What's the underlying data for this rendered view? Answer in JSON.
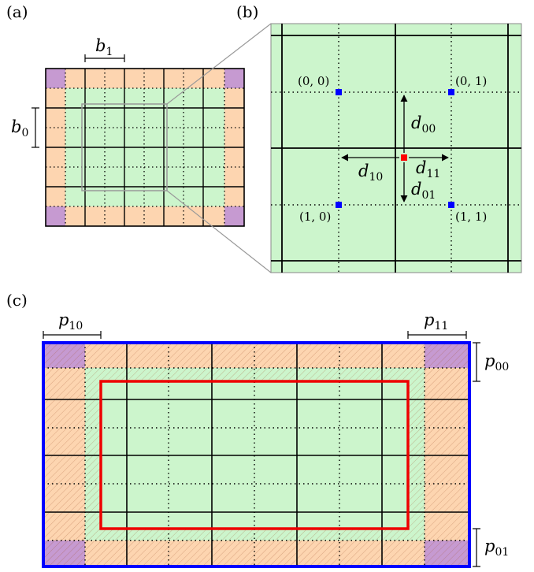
{
  "panels": {
    "a": {
      "label": "(a)"
    },
    "b": {
      "label": "(b)"
    },
    "c": {
      "label": "(c)"
    }
  },
  "panel_a": {
    "b1_var": "b",
    "b1_sub": "1",
    "b0_var": "b",
    "b0_sub": "0"
  },
  "panel_b": {
    "corners": [
      "(0, 0)",
      "(0, 1)",
      "(1, 0)",
      "(1, 1)"
    ],
    "d00_var": "d",
    "d00_sub": "00",
    "d10_var": "d",
    "d10_sub": "10",
    "d11_var": "d",
    "d11_sub": "11",
    "d01_var": "d",
    "d01_sub": "01"
  },
  "panel_c": {
    "p10_var": "p",
    "p10_sub": "10",
    "p11_var": "p",
    "p11_sub": "11",
    "p00_var": "p",
    "p00_sub": "00",
    "p01_var": "p",
    "p01_sub": "01"
  },
  "colors": {
    "green": "#ccf5cc",
    "orange": "#fdd5b0",
    "purple": "#c69ad1",
    "corner_point": "#0000ff",
    "center_point": "#ff0000",
    "outer_border_c": "#0000ff",
    "inner_border_c": "#ee0000",
    "zoom_lines": "#999999"
  },
  "icons": {
    "corner_marker": "blue-square",
    "center_marker": "red-square"
  }
}
